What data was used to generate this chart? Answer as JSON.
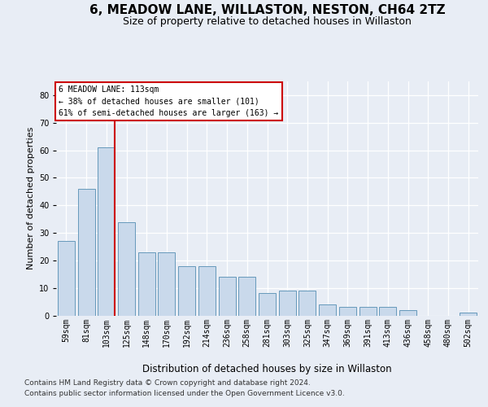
{
  "title1": "6, MEADOW LANE, WILLASTON, NESTON, CH64 2TZ",
  "title2": "Size of property relative to detached houses in Willaston",
  "xlabel": "Distribution of detached houses by size in Willaston",
  "ylabel": "Number of detached properties",
  "categories": [
    "59sqm",
    "81sqm",
    "103sqm",
    "125sqm",
    "148sqm",
    "170sqm",
    "192sqm",
    "214sqm",
    "236sqm",
    "258sqm",
    "281sqm",
    "303sqm",
    "325sqm",
    "347sqm",
    "369sqm",
    "391sqm",
    "413sqm",
    "436sqm",
    "458sqm",
    "480sqm",
    "502sqm"
  ],
  "values": [
    27,
    46,
    61,
    34,
    23,
    23,
    18,
    18,
    14,
    14,
    8,
    9,
    9,
    4,
    3,
    3,
    3,
    2,
    0,
    0,
    1
  ],
  "bar_color": "#c9d9eb",
  "bar_edge_color": "#6699bb",
  "highlight_bar_index": 2,
  "highlight_color": "#cc0000",
  "annotation_line1": "6 MEADOW LANE: 113sqm",
  "annotation_line2": "← 38% of detached houses are smaller (101)",
  "annotation_line3": "61% of semi-detached houses are larger (163) →",
  "annotation_box_facecolor": "#ffffff",
  "annotation_box_edgecolor": "#cc0000",
  "ylim": [
    0,
    85
  ],
  "yticks": [
    0,
    10,
    20,
    30,
    40,
    50,
    60,
    70,
    80
  ],
  "footer_line1": "Contains HM Land Registry data © Crown copyright and database right 2024.",
  "footer_line2": "Contains public sector information licensed under the Open Government Licence v3.0.",
  "bg_color": "#e8edf5",
  "plot_bg_color": "#e8edf5",
  "grid_color": "#ffffff",
  "title1_fontsize": 11,
  "title2_fontsize": 9,
  "ylabel_fontsize": 8,
  "tick_fontsize": 7,
  "xlabel_fontsize": 8.5,
  "footer_fontsize": 6.5
}
